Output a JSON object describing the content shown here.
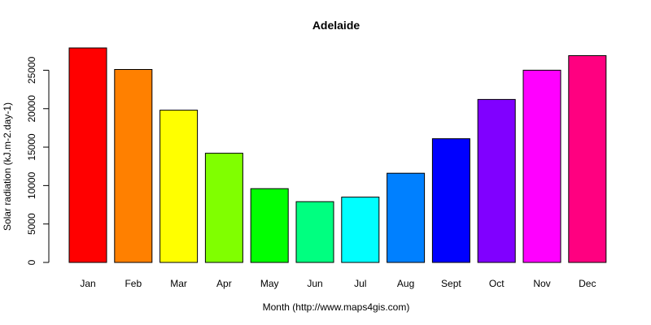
{
  "chart_data": {
    "type": "bar",
    "title": "Adelaide",
    "xlabel": "Month (http://www.maps4gis.com)",
    "ylabel": "Solar radiation (kJ.m-2.day-1)",
    "categories": [
      "Jan",
      "Feb",
      "Mar",
      "Apr",
      "May",
      "Jun",
      "Jul",
      "Aug",
      "Sept",
      "Oct",
      "Nov",
      "Dec"
    ],
    "values": [
      27900,
      25100,
      19800,
      14200,
      9600,
      7900,
      8500,
      11600,
      16100,
      21200,
      25000,
      26900
    ],
    "colors": [
      "#FF0000",
      "#FF8000",
      "#FFFF00",
      "#80FF00",
      "#00FF00",
      "#00FF80",
      "#00FFFF",
      "#0080FF",
      "#0000FF",
      "#8000FF",
      "#FF00FF",
      "#FF0080"
    ],
    "yticks": [
      0,
      5000,
      10000,
      15000,
      20000,
      25000
    ],
    "ylim": [
      0,
      27900
    ],
    "grid": false,
    "legend": "none"
  }
}
